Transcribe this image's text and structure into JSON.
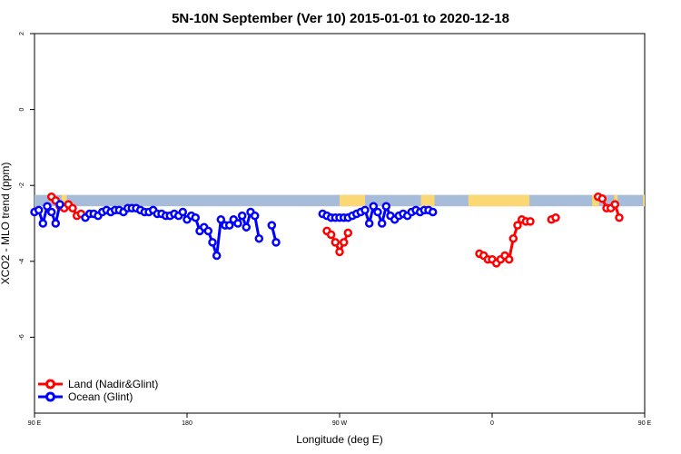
{
  "chart_data": {
    "type": "line",
    "title": "5N-10N September (Ver 10)   2015-01-01 to 2020-12-18",
    "xlabel": "Longitude (deg E)",
    "ylabel": "XCO2 - MLO trend (ppm)",
    "xlim": [
      90,
      450
    ],
    "ylim": [
      -8,
      2
    ],
    "x_ticks": [
      {
        "value": 90,
        "label": "90 E"
      },
      {
        "value": 180,
        "label": "180"
      },
      {
        "value": 270,
        "label": "90 W"
      },
      {
        "value": 360,
        "label": "0"
      },
      {
        "value": 450,
        "label": "90 E"
      },
      {
        "value": 540,
        "label": "180"
      }
    ],
    "y_ticks": [
      {
        "value": 2,
        "label": "2"
      },
      {
        "value": 0,
        "label": "0"
      },
      {
        "value": -2,
        "label": "-2"
      },
      {
        "value": -4,
        "label": "-4"
      },
      {
        "value": -6,
        "label": "-6"
      }
    ],
    "grid": false,
    "legend_position": "bottom-left",
    "colors": {
      "land": "#ff0000",
      "ocean": "#0000ff",
      "map_ocean": "#a7bcd9",
      "map_land": "#fcd874"
    },
    "series": [
      {
        "name": "Land (Nadir&Glint)",
        "color": "#ff0000",
        "segments": [
          [
            [
              100,
              -2.3
            ],
            [
              102.5,
              -2.4
            ],
            [
              105,
              -2.55
            ],
            [
              107.5,
              -2.6
            ],
            [
              110,
              -2.5
            ],
            [
              112.5,
              -2.6
            ],
            [
              115,
              -2.8
            ],
            [
              117.5,
              -2.75
            ]
          ],
          [
            [
              262.5,
              -3.2
            ],
            [
              265,
              -3.3
            ],
            [
              267.5,
              -3.5
            ],
            [
              270,
              -3.75
            ],
            [
              272.5,
              -3.5
            ],
            [
              275,
              -3.25
            ]
          ],
          [
            [
              352.5,
              -3.8
            ],
            [
              355,
              -3.85
            ],
            [
              357.5,
              -3.95
            ],
            [
              360,
              -3.95
            ],
            [
              362.5,
              -4.05
            ],
            [
              365,
              -3.95
            ],
            [
              367.5,
              -3.85
            ],
            [
              370,
              -3.95
            ],
            [
              372.5,
              -3.4
            ],
            [
              375,
              -3.05
            ],
            [
              377.5,
              -2.9
            ],
            [
              380,
              -2.95
            ],
            [
              382.5,
              -2.95
            ]
          ],
          [
            [
              395,
              -2.9
            ],
            [
              397.5,
              -2.85
            ]
          ],
          [
            [
              422.5,
              -2.3
            ],
            [
              425,
              -2.35
            ],
            [
              427.5,
              -2.6
            ],
            [
              430,
              -2.6
            ],
            [
              432.5,
              -2.5
            ],
            [
              435,
              -2.85
            ]
          ]
        ]
      },
      {
        "name": "Ocean (Glint)",
        "color": "#0000ff",
        "segments": [
          [
            [
              90,
              -2.7
            ],
            [
              92.5,
              -2.65
            ],
            [
              95,
              -3.0
            ],
            [
              97.5,
              -2.55
            ],
            [
              100,
              -2.7
            ],
            [
              102.5,
              -3.0
            ],
            [
              105,
              -2.5
            ]
          ],
          [
            [
              120,
              -2.85
            ],
            [
              122.5,
              -2.75
            ],
            [
              125,
              -2.75
            ],
            [
              127.5,
              -2.8
            ],
            [
              130,
              -2.7
            ],
            [
              132.5,
              -2.65
            ],
            [
              135,
              -2.7
            ],
            [
              137.5,
              -2.65
            ],
            [
              140,
              -2.65
            ],
            [
              142.5,
              -2.7
            ],
            [
              145,
              -2.6
            ],
            [
              147.5,
              -2.6
            ],
            [
              150,
              -2.6
            ],
            [
              152.5,
              -2.65
            ],
            [
              155,
              -2.7
            ],
            [
              157.5,
              -2.7
            ],
            [
              160,
              -2.65
            ],
            [
              162.5,
              -2.75
            ],
            [
              165,
              -2.75
            ],
            [
              167.5,
              -2.8
            ],
            [
              170,
              -2.8
            ],
            [
              172.5,
              -2.75
            ],
            [
              175,
              -2.8
            ],
            [
              177.5,
              -2.7
            ],
            [
              180,
              -2.9
            ],
            [
              182.5,
              -2.8
            ],
            [
              185,
              -2.85
            ],
            [
              187.5,
              -3.2
            ],
            [
              190,
              -3.1
            ],
            [
              192.5,
              -3.2
            ],
            [
              195,
              -3.5
            ],
            [
              197.5,
              -3.85
            ],
            [
              200,
              -2.9
            ],
            [
              202.5,
              -3.05
            ],
            [
              205,
              -3.05
            ],
            [
              207.5,
              -2.9
            ],
            [
              210,
              -3.0
            ],
            [
              212.5,
              -2.8
            ],
            [
              215,
              -3.1
            ],
            [
              217.5,
              -2.7
            ],
            [
              220,
              -2.8
            ],
            [
              222.5,
              -3.4
            ]
          ],
          [
            [
              230,
              -3.05
            ],
            [
              232.5,
              -3.5
            ]
          ],
          [
            [
              260,
              -2.75
            ],
            [
              262.5,
              -2.8
            ],
            [
              265,
              -2.85
            ],
            [
              267.5,
              -2.85
            ],
            [
              270,
              -2.85
            ],
            [
              272.5,
              -2.85
            ],
            [
              275,
              -2.85
            ],
            [
              277.5,
              -2.8
            ],
            [
              280,
              -2.75
            ],
            [
              282.5,
              -2.7
            ],
            [
              285,
              -2.65
            ],
            [
              287.5,
              -3.0
            ],
            [
              290,
              -2.55
            ],
            [
              292.5,
              -2.7
            ],
            [
              295,
              -3.0
            ],
            [
              297.5,
              -2.55
            ],
            [
              300,
              -2.8
            ],
            [
              302.5,
              -2.9
            ],
            [
              305,
              -2.8
            ],
            [
              307.5,
              -2.75
            ],
            [
              310,
              -2.8
            ],
            [
              312.5,
              -2.7
            ],
            [
              315,
              -2.65
            ],
            [
              317.5,
              -2.7
            ],
            [
              320,
              -2.65
            ],
            [
              322.5,
              -2.65
            ],
            [
              325,
              -2.7
            ]
          ]
        ]
      }
    ],
    "legend": [
      "Land (Nadir&Glint)",
      "Ocean (Glint)"
    ]
  }
}
